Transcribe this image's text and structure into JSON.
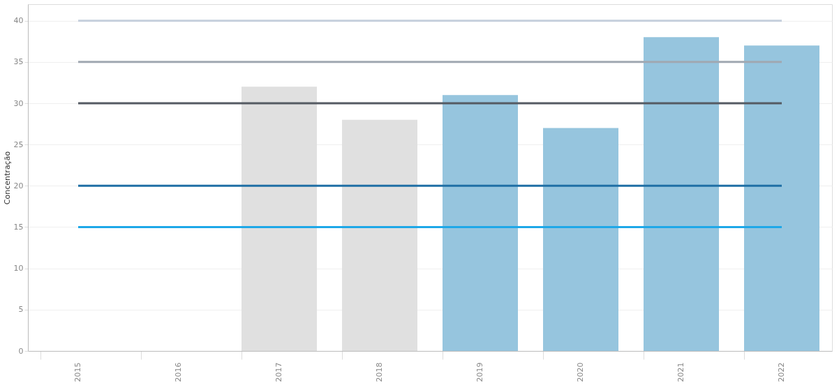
{
  "chart_data": {
    "type": "bar",
    "ylabel": "Concentração",
    "categories": [
      "2015",
      "2016",
      "2017",
      "2018",
      "2019",
      "2020",
      "2021",
      "2022"
    ],
    "series": [
      {
        "colors": [
          "#96c5de",
          "#96c5de",
          "#e0e0e0",
          "#e0e0e0",
          "#96c5de",
          "#96c5de",
          "#96c5de",
          "#96c5de"
        ],
        "values": [
          null,
          null,
          32,
          28,
          31,
          27,
          38,
          37
        ]
      },
      {
        "type": "line",
        "color": "#c5cfdc",
        "values": [
          40,
          40,
          40,
          40,
          40,
          40,
          40,
          40
        ]
      },
      {
        "type": "line",
        "color": "#a0a8b2",
        "values": [
          35,
          35,
          35,
          35,
          35,
          35,
          35,
          35
        ]
      },
      {
        "type": "line",
        "color": "#555b63",
        "values": [
          30,
          30,
          30,
          30,
          30,
          30,
          30,
          30
        ]
      },
      {
        "type": "line",
        "color": "#1f6fa5",
        "values": [
          20,
          20,
          20,
          20,
          20,
          20,
          20,
          20
        ]
      },
      {
        "type": "line",
        "color": "#1ea8e8",
        "values": [
          15,
          15,
          15,
          15,
          15,
          15,
          15,
          15
        ]
      }
    ],
    "ylim": [
      0,
      42
    ],
    "yticks": [
      0,
      5,
      10,
      15,
      20,
      25,
      30,
      35,
      40
    ],
    "grid": "y"
  }
}
